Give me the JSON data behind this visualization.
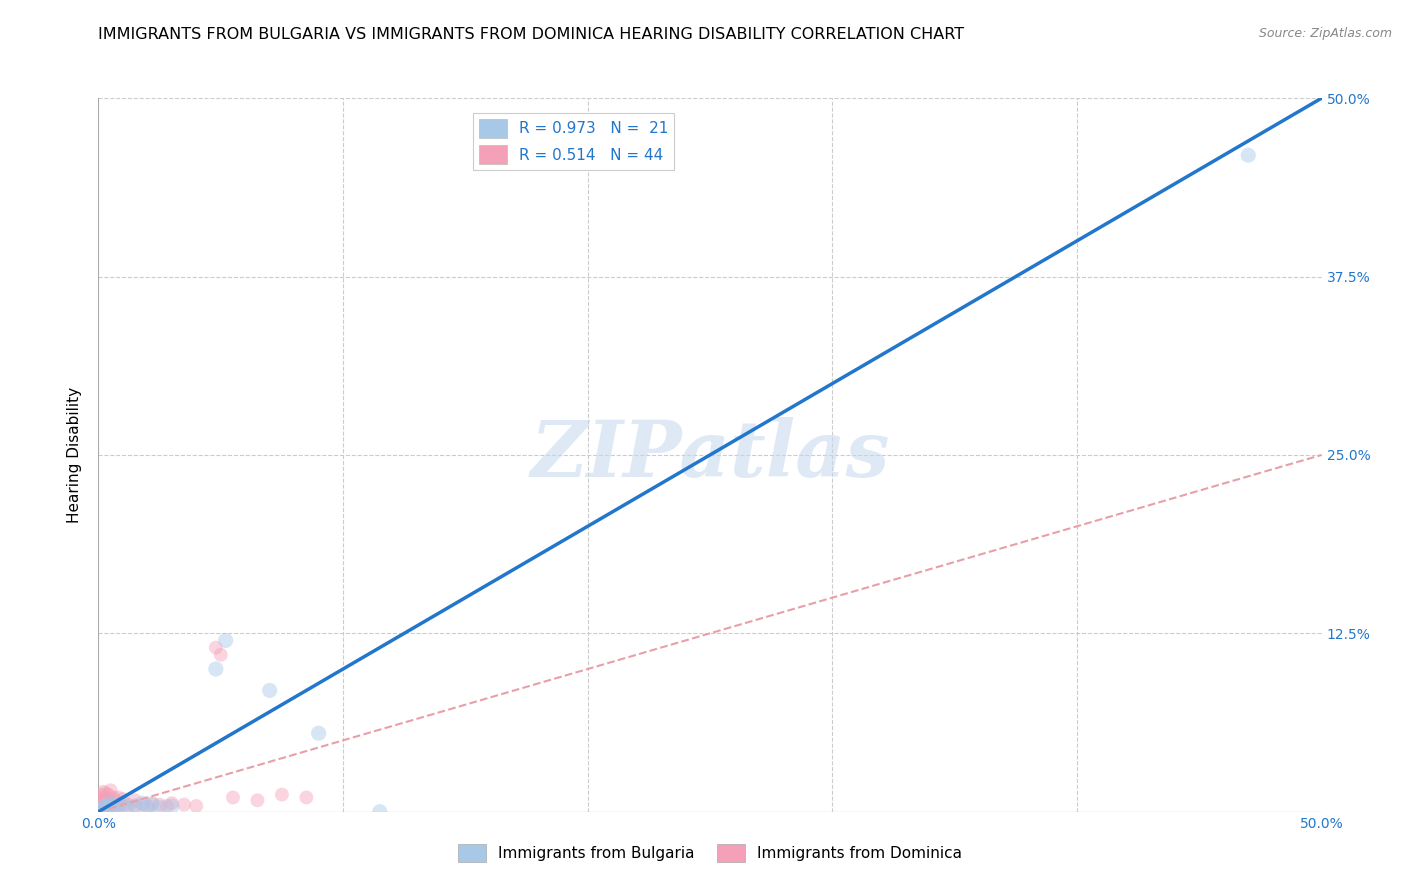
{
  "title": "IMMIGRANTS FROM BULGARIA VS IMMIGRANTS FROM DOMINICA HEARING DISABILITY CORRELATION CHART",
  "source": "Source: ZipAtlas.com",
  "ylabel": "Hearing Disability",
  "xlim": [
    0,
    0.5
  ],
  "ylim": [
    0,
    0.5
  ],
  "yticks": [
    0.0,
    0.125,
    0.25,
    0.375,
    0.5
  ],
  "ytick_labels_right": [
    "",
    "12.5%",
    "25.0%",
    "37.5%",
    "50.0%"
  ],
  "xtick_left_label": "0.0%",
  "xtick_right_label": "50.0%",
  "legend_entry1": "R = 0.973   N =  21",
  "legend_entry2": "R = 0.514   N = 44",
  "watermark": "ZIPatlas",
  "bulgaria_color": "#a8c8e8",
  "dominica_color": "#f4a0b8",
  "bulgaria_line_color": "#2277cc",
  "dominica_line_solid_color": "#e06070",
  "dominica_line_dash_color": "#e8a0a8",
  "bulgaria_scatter": [
    [
      0.001,
      0.002
    ],
    [
      0.002,
      0.003
    ],
    [
      0.003,
      0.004
    ],
    [
      0.004,
      0.003
    ],
    [
      0.005,
      0.006
    ],
    [
      0.006,
      0.004
    ],
    [
      0.008,
      0.005
    ],
    [
      0.01,
      0.006
    ],
    [
      0.012,
      0.003
    ],
    [
      0.015,
      0.004
    ],
    [
      0.018,
      0.006
    ],
    [
      0.02,
      0.003
    ],
    [
      0.022,
      0.005
    ],
    [
      0.025,
      0.003
    ],
    [
      0.03,
      0.004
    ],
    [
      0.048,
      0.1
    ],
    [
      0.052,
      0.12
    ],
    [
      0.07,
      0.085
    ],
    [
      0.09,
      0.055
    ],
    [
      0.115,
      0.0
    ],
    [
      0.47,
      0.46
    ]
  ],
  "dominica_scatter": [
    [
      0.001,
      0.002
    ],
    [
      0.001,
      0.005
    ],
    [
      0.001,
      0.008
    ],
    [
      0.001,
      0.012
    ],
    [
      0.002,
      0.003
    ],
    [
      0.002,
      0.007
    ],
    [
      0.002,
      0.01
    ],
    [
      0.002,
      0.014
    ],
    [
      0.003,
      0.002
    ],
    [
      0.003,
      0.005
    ],
    [
      0.003,
      0.009
    ],
    [
      0.003,
      0.013
    ],
    [
      0.004,
      0.003
    ],
    [
      0.004,
      0.008
    ],
    [
      0.004,
      0.012
    ],
    [
      0.005,
      0.004
    ],
    [
      0.005,
      0.007
    ],
    [
      0.005,
      0.015
    ],
    [
      0.006,
      0.005
    ],
    [
      0.006,
      0.01
    ],
    [
      0.007,
      0.004
    ],
    [
      0.007,
      0.008
    ],
    [
      0.008,
      0.003
    ],
    [
      0.008,
      0.01
    ],
    [
      0.009,
      0.006
    ],
    [
      0.01,
      0.004
    ],
    [
      0.01,
      0.009
    ],
    [
      0.012,
      0.005
    ],
    [
      0.015,
      0.004
    ],
    [
      0.015,
      0.008
    ],
    [
      0.018,
      0.005
    ],
    [
      0.02,
      0.004
    ],
    [
      0.022,
      0.006
    ],
    [
      0.025,
      0.005
    ],
    [
      0.028,
      0.004
    ],
    [
      0.03,
      0.006
    ],
    [
      0.035,
      0.005
    ],
    [
      0.04,
      0.004
    ],
    [
      0.048,
      0.115
    ],
    [
      0.05,
      0.11
    ],
    [
      0.055,
      0.01
    ],
    [
      0.065,
      0.008
    ],
    [
      0.075,
      0.012
    ],
    [
      0.085,
      0.01
    ]
  ],
  "bulgaria_line": [
    [
      0.0,
      0.0
    ],
    [
      0.5,
      0.5
    ]
  ],
  "dominica_solid_line": [
    [
      0.0,
      0.0
    ],
    [
      0.055,
      0.055
    ]
  ],
  "dominica_dash_line": [
    [
      0.0,
      0.0
    ],
    [
      0.5,
      0.25
    ]
  ],
  "scatter_size_bulgaria": 120,
  "scatter_size_dominica": 100,
  "scatter_alpha": 0.45,
  "title_fontsize": 11.5,
  "axis_label_fontsize": 11,
  "tick_fontsize": 10,
  "legend_fontsize": 11,
  "background_color": "#ffffff",
  "grid_color": "#cccccc",
  "right_tick_color": "#2277cc",
  "border_color": "#aaaaaa"
}
